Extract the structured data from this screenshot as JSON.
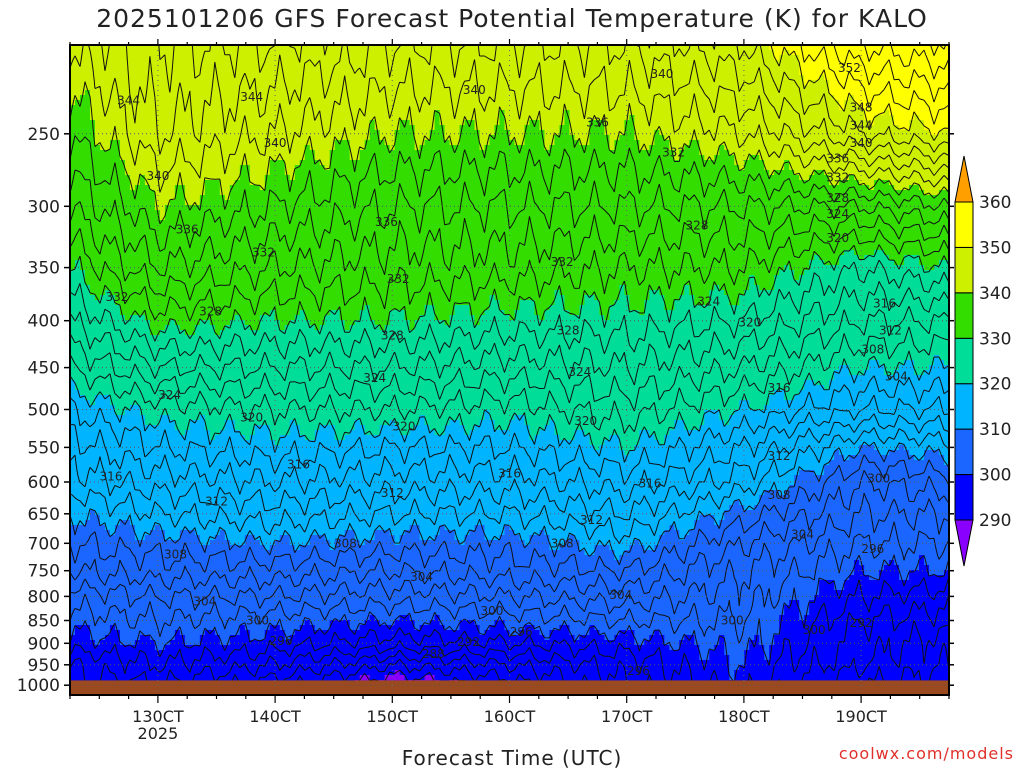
{
  "chart_data": {
    "type": "contour",
    "title": "2025101206 GFS Forecast Potential Temperature (K) for KALO",
    "xlabel": "Forecast Time (UTC)",
    "ylabel": "",
    "x_ticks": [
      {
        "label": "130CT",
        "sub": "2025",
        "day": 13
      },
      {
        "label": "140CT",
        "sub": "",
        "day": 14
      },
      {
        "label": "150CT",
        "sub": "",
        "day": 15
      },
      {
        "label": "160CT",
        "sub": "",
        "day": 16
      },
      {
        "label": "170CT",
        "sub": "",
        "day": 17
      },
      {
        "label": "180CT",
        "sub": "",
        "day": 18
      },
      {
        "label": "190CT",
        "sub": "",
        "day": 19
      }
    ],
    "xlim_day": [
      12.25,
      19.75
    ],
    "y_ticks": [
      250,
      300,
      350,
      400,
      450,
      500,
      550,
      600,
      650,
      700,
      750,
      800,
      850,
      900,
      950,
      1000
    ],
    "ylim_hpa": [
      200,
      1025
    ],
    "y_scale": "log",
    "y_inverted": true,
    "grid": "dotted",
    "levels_k": [
      290,
      300,
      310,
      320,
      330,
      340,
      350,
      360
    ],
    "colorbar": {
      "ticks": [
        290,
        300,
        310,
        320,
        330,
        340,
        350,
        360
      ],
      "colors": [
        "#8a00ff",
        "#0000ff",
        "#1a66ff",
        "#00b4ff",
        "#00dd99",
        "#33dd00",
        "#ccf000",
        "#ffff00",
        "#ffa000"
      ],
      "extend": "both"
    },
    "ground_color": "#9b4a1f",
    "profile_pressure_hpa": [
      1000,
      950,
      900,
      850,
      800,
      750,
      700,
      650,
      600,
      550,
      500,
      450,
      400,
      350,
      300,
      250,
      200
    ],
    "profiles": [
      {
        "day": 12.25,
        "theta": [
          295,
          296,
          299,
          301,
          303,
          306,
          308,
          310,
          313,
          315,
          318,
          322,
          326,
          330,
          334,
          338,
          342
        ]
      },
      {
        "day": 13.0,
        "theta": [
          296,
          298,
          300,
          302,
          304,
          307,
          309,
          312,
          315,
          318,
          321,
          326,
          331,
          336,
          340,
          344,
          346
        ]
      },
      {
        "day": 14.0,
        "theta": [
          293,
          296,
          299,
          301,
          304,
          307,
          310,
          313,
          316,
          319,
          322,
          326,
          330,
          334,
          338,
          342,
          346
        ]
      },
      {
        "day": 15.0,
        "theta": [
          288,
          292,
          297,
          300,
          303,
          306,
          309,
          312,
          315,
          318,
          322,
          326,
          330,
          333,
          336,
          340,
          344
        ]
      },
      {
        "day": 16.0,
        "theta": [
          291,
          294,
          298,
          301,
          304,
          307,
          309,
          312,
          315,
          318,
          321,
          325,
          329,
          333,
          336,
          340,
          344
        ]
      },
      {
        "day": 17.0,
        "theta": [
          296,
          297,
          299,
          302,
          305,
          308,
          311,
          314,
          317,
          320,
          323,
          326,
          329,
          332,
          336,
          340,
          344
        ]
      },
      {
        "day": 18.0,
        "theta": [
          299,
          300,
          301,
          302,
          303,
          304,
          306,
          309,
          313,
          316,
          320,
          324,
          328,
          332,
          336,
          342,
          348
        ]
      },
      {
        "day": 19.0,
        "theta": [
          292,
          294,
          295,
          296,
          298,
          300,
          302,
          304,
          306,
          310,
          316,
          320,
          324,
          328,
          336,
          348,
          356
        ]
      },
      {
        "day": 19.75,
        "theta": [
          291,
          292,
          293,
          295,
          297,
          300,
          302,
          304,
          307,
          311,
          316,
          320,
          324,
          330,
          338,
          350,
          358
        ]
      }
    ],
    "contour_labels": [
      {
        "value": "344",
        "day": 12.75,
        "p": 230
      },
      {
        "value": "344",
        "day": 13.8,
        "p": 228
      },
      {
        "value": "340",
        "day": 13.0,
        "p": 278
      },
      {
        "value": "340",
        "day": 14.0,
        "p": 256
      },
      {
        "value": "340",
        "day": 15.7,
        "p": 224
      },
      {
        "value": "340",
        "day": 17.3,
        "p": 215
      },
      {
        "value": "336",
        "day": 13.25,
        "p": 318
      },
      {
        "value": "336",
        "day": 14.95,
        "p": 312
      },
      {
        "value": "336",
        "day": 16.75,
        "p": 243
      },
      {
        "value": "332",
        "day": 12.65,
        "p": 377
      },
      {
        "value": "332",
        "day": 13.9,
        "p": 337
      },
      {
        "value": "332",
        "day": 15.05,
        "p": 360
      },
      {
        "value": "332",
        "day": 16.45,
        "p": 345
      },
      {
        "value": "332",
        "day": 17.4,
        "p": 262
      },
      {
        "value": "328",
        "day": 13.45,
        "p": 391
      },
      {
        "value": "328",
        "day": 15.0,
        "p": 415
      },
      {
        "value": "328",
        "day": 16.5,
        "p": 410
      },
      {
        "value": "328",
        "day": 17.6,
        "p": 315
      },
      {
        "value": "324",
        "day": 13.1,
        "p": 482
      },
      {
        "value": "324",
        "day": 14.85,
        "p": 462
      },
      {
        "value": "324",
        "day": 16.6,
        "p": 455
      },
      {
        "value": "324",
        "day": 17.7,
        "p": 381
      },
      {
        "value": "320",
        "day": 13.8,
        "p": 510
      },
      {
        "value": "320",
        "day": 15.1,
        "p": 522
      },
      {
        "value": "320",
        "day": 16.65,
        "p": 515
      },
      {
        "value": "320",
        "day": 18.05,
        "p": 402
      },
      {
        "value": "316",
        "day": 12.6,
        "p": 592
      },
      {
        "value": "316",
        "day": 14.2,
        "p": 574
      },
      {
        "value": "316",
        "day": 16.0,
        "p": 587
      },
      {
        "value": "316",
        "day": 17.2,
        "p": 602
      },
      {
        "value": "316",
        "day": 18.3,
        "p": 474
      },
      {
        "value": "312",
        "day": 13.5,
        "p": 630
      },
      {
        "value": "312",
        "day": 15.0,
        "p": 617
      },
      {
        "value": "312",
        "day": 16.7,
        "p": 660
      },
      {
        "value": "312",
        "day": 18.3,
        "p": 562
      },
      {
        "value": "308",
        "day": 13.15,
        "p": 720
      },
      {
        "value": "308",
        "day": 14.6,
        "p": 700
      },
      {
        "value": "308",
        "day": 16.45,
        "p": 700
      },
      {
        "value": "308",
        "day": 18.3,
        "p": 620
      },
      {
        "value": "304",
        "day": 13.4,
        "p": 810
      },
      {
        "value": "304",
        "day": 15.25,
        "p": 762
      },
      {
        "value": "304",
        "day": 16.95,
        "p": 797
      },
      {
        "value": "304",
        "day": 18.5,
        "p": 685
      },
      {
        "value": "300",
        "day": 13.85,
        "p": 850
      },
      {
        "value": "300",
        "day": 15.85,
        "p": 830
      },
      {
        "value": "300",
        "day": 17.9,
        "p": 850
      },
      {
        "value": "300",
        "day": 18.6,
        "p": 870
      },
      {
        "value": "300",
        "day": 19.15,
        "p": 595
      },
      {
        "value": "296",
        "day": 14.05,
        "p": 895
      },
      {
        "value": "296",
        "day": 16.1,
        "p": 875
      },
      {
        "value": "296",
        "day": 17.1,
        "p": 965
      },
      {
        "value": "296",
        "day": 19.1,
        "p": 710
      },
      {
        "value": "292",
        "day": 15.65,
        "p": 897
      },
      {
        "value": "292",
        "day": 19.0,
        "p": 855
      },
      {
        "value": "288",
        "day": 15.35,
        "p": 925
      },
      {
        "value": "352",
        "day": 18.9,
        "p": 212
      },
      {
        "value": "348",
        "day": 19.0,
        "p": 234
      },
      {
        "value": "344",
        "day": 19.0,
        "p": 245
      },
      {
        "value": "340",
        "day": 19.0,
        "p": 256
      },
      {
        "value": "336",
        "day": 18.8,
        "p": 266
      },
      {
        "value": "332",
        "day": 18.8,
        "p": 279
      },
      {
        "value": "328",
        "day": 18.8,
        "p": 294
      },
      {
        "value": "324",
        "day": 18.8,
        "p": 306
      },
      {
        "value": "320",
        "day": 18.8,
        "p": 325
      },
      {
        "value": "316",
        "day": 19.2,
        "p": 383
      },
      {
        "value": "312",
        "day": 19.25,
        "p": 410
      },
      {
        "value": "308",
        "day": 19.1,
        "p": 430
      },
      {
        "value": "304",
        "day": 19.3,
        "p": 460
      }
    ]
  },
  "footer": {
    "x_title": "Forecast Time (UTC)",
    "credit": "coolwx.com/models"
  },
  "header": {
    "title": "2025101206 GFS Forecast Potential Temperature (K) for KALO"
  }
}
